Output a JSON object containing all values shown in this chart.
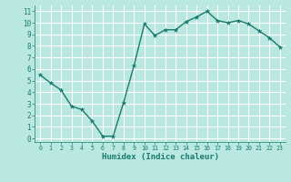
{
  "x": [
    0,
    1,
    2,
    3,
    4,
    5,
    6,
    7,
    8,
    9,
    10,
    11,
    12,
    13,
    14,
    15,
    16,
    17,
    18,
    19,
    20,
    21,
    22,
    23
  ],
  "y": [
    5.5,
    4.8,
    4.2,
    2.8,
    2.5,
    1.5,
    0.2,
    0.2,
    3.1,
    6.3,
    9.9,
    8.9,
    9.4,
    9.4,
    10.1,
    10.5,
    11.0,
    10.2,
    10.0,
    10.2,
    9.9,
    9.3,
    8.7,
    7.9
  ],
  "xlim": [
    -0.5,
    23.5
  ],
  "ylim": [
    -0.3,
    11.5
  ],
  "xlabel": "Humidex (Indice chaleur)",
  "xticks": [
    0,
    1,
    2,
    3,
    4,
    5,
    6,
    7,
    8,
    9,
    10,
    11,
    12,
    13,
    14,
    15,
    16,
    17,
    18,
    19,
    20,
    21,
    22,
    23
  ],
  "yticks": [
    0,
    1,
    2,
    3,
    4,
    5,
    6,
    7,
    8,
    9,
    10,
    11
  ],
  "line_color": "#1a7a6e",
  "bg_color": "#b8e8e0",
  "grid_color": "#ffffff",
  "xlabel_fontsize": 6.5,
  "xtick_fontsize": 4.8,
  "ytick_fontsize": 5.5,
  "marker_size": 3.5,
  "linewidth": 1.0
}
